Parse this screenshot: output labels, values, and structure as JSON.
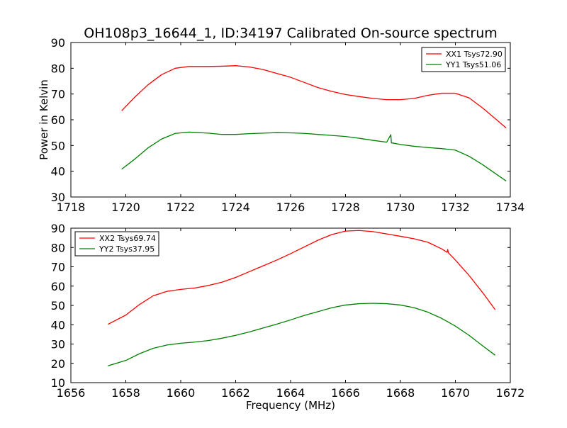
{
  "title": "OH108p3_16644_1, ID:34197 Calibrated On-source spectrum",
  "chart_data": [
    {
      "type": "line",
      "xlabel": "",
      "ylabel": "Power in Kelvin",
      "xlim": [
        1718,
        1734
      ],
      "ylim": [
        30,
        90
      ],
      "xticks": [
        1718,
        1720,
        1722,
        1724,
        1726,
        1728,
        1730,
        1732,
        1734
      ],
      "yticks": [
        30,
        40,
        50,
        60,
        70,
        80,
        90
      ],
      "grid": false,
      "legend_position": "top-right",
      "series": [
        {
          "name": "XX1 Tsys72.90",
          "color": "#ff0000",
          "x": [
            1719.85,
            1720.3,
            1720.8,
            1721.3,
            1721.8,
            1722.3,
            1723.0,
            1723.5,
            1724.0,
            1724.5,
            1725.0,
            1725.5,
            1726.0,
            1726.5,
            1727.0,
            1727.5,
            1728.0,
            1728.5,
            1729.0,
            1729.5,
            1730.0,
            1730.5,
            1731.0,
            1731.5,
            1732.0,
            1732.5,
            1733.0,
            1733.5,
            1733.85
          ],
          "y": [
            63.5,
            68.5,
            73.5,
            77.5,
            80.0,
            80.7,
            80.7,
            80.8,
            81.0,
            80.5,
            79.5,
            78.0,
            76.5,
            74.5,
            72.5,
            71.0,
            69.8,
            69.0,
            68.3,
            67.8,
            67.8,
            68.3,
            69.5,
            70.3,
            70.3,
            68.5,
            64.5,
            60.0,
            56.8
          ]
        },
        {
          "name": "YY1 Tsys51.06",
          "color": "#008000",
          "x": [
            1719.85,
            1720.3,
            1720.8,
            1721.3,
            1721.8,
            1722.3,
            1723.0,
            1723.5,
            1724.0,
            1724.5,
            1725.0,
            1725.5,
            1726.0,
            1726.5,
            1727.0,
            1727.5,
            1728.0,
            1728.5,
            1729.0,
            1729.5,
            1729.65,
            1729.67,
            1729.7,
            1730.0,
            1730.5,
            1731.0,
            1731.5,
            1732.0,
            1732.5,
            1733.0,
            1733.5,
            1733.85
          ],
          "y": [
            40.8,
            44.5,
            49.0,
            52.5,
            54.7,
            55.2,
            54.8,
            54.3,
            54.3,
            54.6,
            54.8,
            55.0,
            54.9,
            54.7,
            54.3,
            53.9,
            53.5,
            52.8,
            52.0,
            51.3,
            54.2,
            51.0,
            51.0,
            50.4,
            49.7,
            49.2,
            48.8,
            48.2,
            45.8,
            42.5,
            38.8,
            36.2
          ]
        }
      ]
    },
    {
      "type": "line",
      "xlabel": "Frequency (MHz)",
      "ylabel": "",
      "xlim": [
        1656,
        1672
      ],
      "ylim": [
        10,
        90
      ],
      "xticks": [
        1656,
        1658,
        1660,
        1662,
        1664,
        1666,
        1668,
        1670,
        1672
      ],
      "yticks": [
        10,
        20,
        30,
        40,
        50,
        60,
        70,
        80,
        90
      ],
      "grid": false,
      "legend_position": "top-left",
      "series": [
        {
          "name": "XX2 Tsys69.74",
          "color": "#ff0000",
          "x": [
            1657.35,
            1658.0,
            1658.5,
            1659.0,
            1659.5,
            1660.0,
            1660.5,
            1661.0,
            1661.5,
            1662.0,
            1662.5,
            1663.0,
            1663.5,
            1664.0,
            1664.5,
            1665.0,
            1665.5,
            1666.0,
            1666.5,
            1667.0,
            1667.5,
            1668.0,
            1668.5,
            1669.0,
            1669.5,
            1669.7,
            1669.72,
            1669.75,
            1670.0,
            1670.5,
            1671.0,
            1671.45
          ],
          "y": [
            40.2,
            45.0,
            50.5,
            55.0,
            57.3,
            58.3,
            59.0,
            60.3,
            62.0,
            64.5,
            67.5,
            70.5,
            73.5,
            76.8,
            80.3,
            83.8,
            86.7,
            88.5,
            88.8,
            88.2,
            87.0,
            85.8,
            84.5,
            82.7,
            79.3,
            77.5,
            79.0,
            77.2,
            73.5,
            65.5,
            56.5,
            47.8
          ]
        },
        {
          "name": "YY2 Tsys37.95",
          "color": "#008000",
          "x": [
            1657.35,
            1658.0,
            1658.5,
            1659.0,
            1659.5,
            1660.0,
            1660.5,
            1661.0,
            1661.5,
            1662.0,
            1662.5,
            1663.0,
            1663.5,
            1664.0,
            1664.5,
            1665.0,
            1665.5,
            1666.0,
            1666.5,
            1667.0,
            1667.5,
            1668.0,
            1668.5,
            1669.0,
            1669.5,
            1670.0,
            1670.5,
            1671.0,
            1671.45
          ],
          "y": [
            18.7,
            21.5,
            25.0,
            27.8,
            29.5,
            30.4,
            31.0,
            31.8,
            33.0,
            34.5,
            36.3,
            38.3,
            40.3,
            42.5,
            44.8,
            46.8,
            48.8,
            50.2,
            50.9,
            51.1,
            50.9,
            50.2,
            48.8,
            46.5,
            43.3,
            39.3,
            34.5,
            29.0,
            24.2
          ]
        }
      ]
    }
  ]
}
